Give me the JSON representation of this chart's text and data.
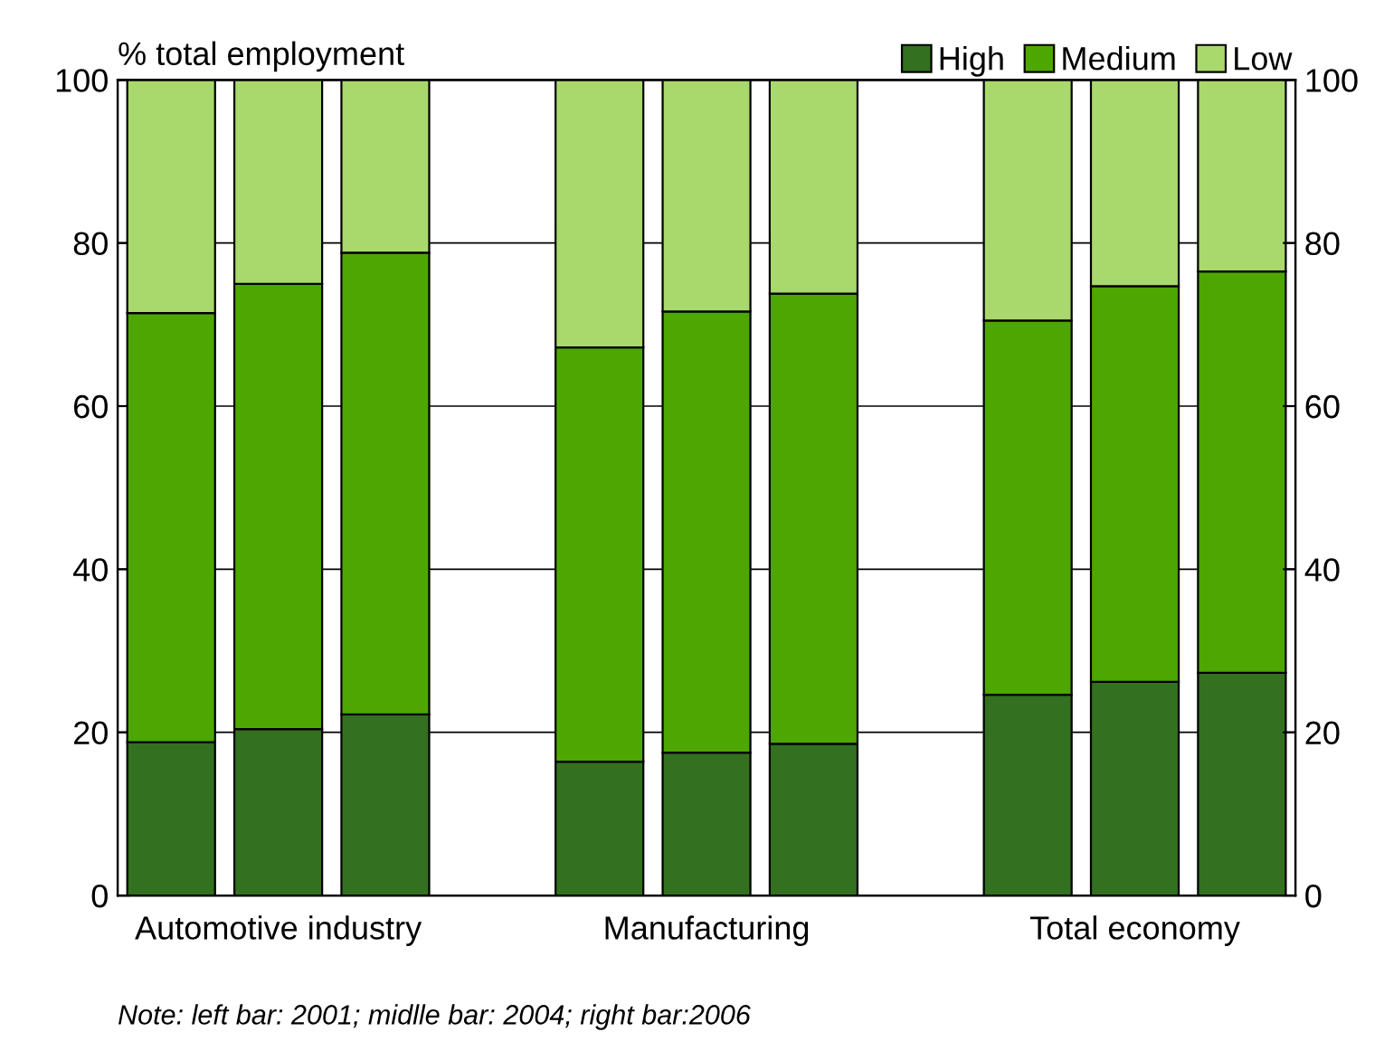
{
  "chart_data": {
    "type": "bar",
    "stacked": true,
    "ylabel": "% total employment",
    "categories": [
      null,
      "Automotive industry",
      null,
      null,
      null,
      "Manufacturing",
      null,
      null,
      null,
      "Total economy",
      null
    ],
    "series": [
      {
        "name": "High",
        "color": "#33701f",
        "values": [
          18.8,
          20.4,
          22.2,
          null,
          16.4,
          17.5,
          18.6,
          null,
          24.6,
          26.2,
          27.3
        ]
      },
      {
        "name": "Medium",
        "color": "#4ea600",
        "values": [
          52.6,
          54.6,
          56.6,
          null,
          50.8,
          54.1,
          55.2,
          null,
          45.9,
          48.5,
          49.2
        ]
      },
      {
        "name": "Low",
        "color": "#a9d86c",
        "values": [
          28.6,
          25.0,
          21.2,
          null,
          32.8,
          28.4,
          26.2,
          null,
          29.5,
          25.3,
          23.5
        ]
      }
    ],
    "ylim": [
      0,
      100
    ],
    "yticks": [
      0,
      20,
      40,
      60,
      80,
      100
    ],
    "y2lim": [
      0,
      100
    ],
    "y2ticks": [
      0,
      20,
      40,
      60,
      80,
      100
    ],
    "grid": "y",
    "legend": "top right",
    "annotations": [
      "Note: left bar: 2001; midlle bar: 2004; right bar:2006"
    ]
  }
}
